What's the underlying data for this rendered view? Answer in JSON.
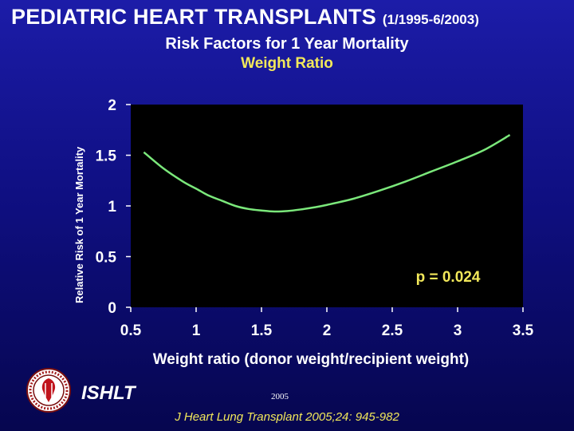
{
  "header": {
    "title": "PEDIATRIC HEART TRANSPLANTS",
    "date_range": "(1/1995-6/2003)",
    "subtitle": "Risk Factors for 1 Year Mortality",
    "subtitle_highlight": "Weight Ratio"
  },
  "footer": {
    "organization": "ISHLT",
    "year": "2005",
    "citation": "J Heart Lung Transplant 2005;24: 945-982"
  },
  "colors": {
    "background": "#12129a",
    "plot_area": "#000000",
    "curve": "#7be87b",
    "highlight_text": "#f2e85a",
    "text": "#ffffff"
  },
  "chart_data": {
    "type": "line",
    "title": "",
    "xlabel": "Weight ratio (donor weight/recipient weight)",
    "ylabel": "Relative Risk of 1 Year Mortality",
    "xlim": [
      0.5,
      3.5
    ],
    "ylim": [
      0,
      2
    ],
    "x_ticks": [
      "0.5",
      "1",
      "1.5",
      "2",
      "2.5",
      "3",
      "3.5"
    ],
    "y_ticks": [
      "0",
      "0.5",
      "1",
      "1.5",
      "2"
    ],
    "grid": false,
    "annotation": "p = 0.024",
    "series": [
      {
        "x": [
          0.6,
          0.75,
          0.9,
          1.0,
          1.1,
          1.2,
          1.3,
          1.4,
          1.5,
          1.6,
          1.7,
          1.8,
          1.9,
          2.0,
          2.2,
          2.4,
          2.6,
          2.8,
          3.0,
          3.2,
          3.4
        ],
        "values": [
          1.53,
          1.37,
          1.24,
          1.17,
          1.1,
          1.05,
          1.0,
          0.97,
          0.955,
          0.945,
          0.95,
          0.965,
          0.985,
          1.01,
          1.07,
          1.15,
          1.24,
          1.34,
          1.44,
          1.55,
          1.7
        ]
      }
    ]
  }
}
